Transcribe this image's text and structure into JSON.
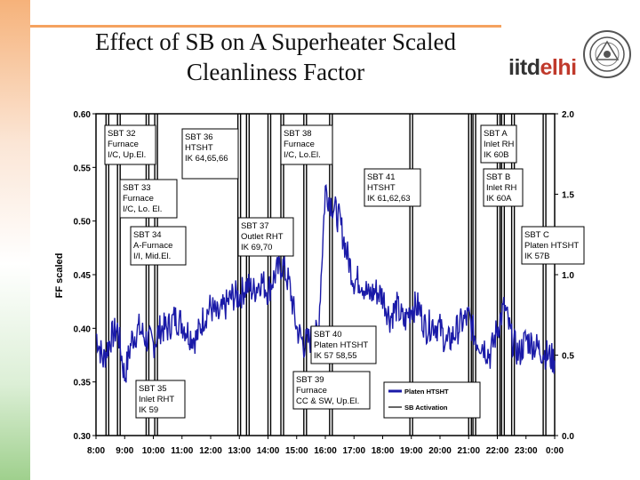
{
  "header": {
    "title_line1": "Effect of SB on A Superheater Scaled",
    "title_line2": "Cleanliness Factor",
    "logo_iitd": "iitd",
    "logo_delhi": "elhi"
  },
  "colors": {
    "series": "#1a1aa8",
    "activation": "#000000",
    "orange_band": "#f5a25f",
    "green_band": "#9fd08d"
  },
  "chart_data": {
    "type": "line",
    "title": "",
    "xlabel": "",
    "ylabel": "FF scaled",
    "x_ticks": [
      "8:00",
      "9:00",
      "10:00",
      "11:00",
      "12:00",
      "13:00",
      "14:00",
      "15:00",
      "16:00",
      "17:00",
      "18:00",
      "19:00",
      "20:00",
      "21:00",
      "22:00",
      "23:00",
      "0:00"
    ],
    "xlim": [
      8,
      24
    ],
    "ylim": [
      0.3,
      0.6
    ],
    "y_ticks": [
      "0.30",
      "0.35",
      "0.40",
      "0.45",
      "0.50",
      "0.55",
      "0.60"
    ],
    "y2lim": [
      0.0,
      2.0
    ],
    "y2_ticks": [
      "0.0",
      "0.5",
      "1.0",
      "1.5",
      "2.0"
    ],
    "legend": [
      "Platen HTSHT",
      "SB Activation"
    ],
    "legend_position": "bottom-right",
    "series": [
      {
        "name": "Platen HTSHT",
        "x": [
          8.0,
          8.25,
          8.5,
          8.75,
          9.0,
          9.25,
          9.5,
          9.75,
          10.0,
          10.25,
          10.5,
          10.75,
          11.0,
          11.25,
          11.5,
          11.75,
          12.0,
          12.25,
          12.5,
          12.75,
          13.0,
          13.25,
          13.5,
          13.75,
          14.0,
          14.25,
          14.5,
          14.75,
          15.0,
          15.25,
          15.5,
          15.75,
          16.0,
          16.25,
          16.5,
          16.75,
          17.0,
          17.25,
          17.5,
          17.75,
          18.0,
          18.25,
          18.5,
          18.75,
          19.0,
          19.25,
          19.5,
          19.75,
          20.0,
          20.25,
          20.5,
          20.75,
          21.0,
          21.25,
          21.5,
          21.75,
          22.0,
          22.25,
          22.5,
          22.75,
          23.0,
          23.25,
          23.5,
          23.75,
          24.0
        ],
        "values": [
          0.395,
          0.37,
          0.39,
          0.4,
          0.355,
          0.39,
          0.4,
          0.39,
          0.385,
          0.4,
          0.4,
          0.41,
          0.405,
          0.395,
          0.39,
          0.41,
          0.42,
          0.41,
          0.42,
          0.43,
          0.43,
          0.44,
          0.435,
          0.445,
          0.435,
          0.45,
          0.46,
          0.44,
          0.4,
          0.385,
          0.39,
          0.395,
          0.53,
          0.515,
          0.5,
          0.47,
          0.445,
          0.445,
          0.43,
          0.435,
          0.43,
          0.41,
          0.42,
          0.405,
          0.42,
          0.42,
          0.4,
          0.405,
          0.4,
          0.385,
          0.395,
          0.405,
          0.41,
          0.39,
          0.385,
          0.375,
          0.4,
          0.42,
          0.39,
          0.375,
          0.39,
          0.385,
          0.38,
          0.375,
          0.37
        ]
      }
    ],
    "sb_activations": [
      8.35,
      8.75,
      9.75,
      10.05,
      12.95,
      13.25,
      14.0,
      14.45,
      15.25,
      16.15,
      18.95,
      21.0,
      21.15,
      22.0,
      22.15,
      22.5,
      23.6
    ],
    "annotations": [
      {
        "lines": [
          "SBT 32",
          "Furnace",
          "I/C, Up.El."
        ]
      },
      {
        "lines": [
          "SBT 36",
          "HTSHT",
          "IK 64,65,66"
        ]
      },
      {
        "lines": [
          "SBT 38",
          "Furnace",
          "I/C, Lo.El."
        ]
      },
      {
        "lines": [
          "SBT A",
          "Inlet RH",
          "IK 60B"
        ]
      },
      {
        "lines": [
          "SBT 33",
          "Furnace",
          "I/C, Lo. El."
        ]
      },
      {
        "lines": [
          "SBT 41",
          "HTSHT",
          "IK 61,62,63"
        ]
      },
      {
        "lines": [
          "SBT B",
          "Inlet RH",
          "IK 60A"
        ]
      },
      {
        "lines": [
          "SBT 37",
          "Outlet RHT",
          "IK 69,70"
        ]
      },
      {
        "lines": [
          "SBT C",
          "Platen HTSHT",
          "IK 57B"
        ]
      },
      {
        "lines": [
          "SBT 34",
          "A-Furnace",
          "I/I, Mid.El."
        ]
      },
      {
        "lines": [
          "SBT 40",
          "Platen HTSHT",
          "IK 57 58,55"
        ]
      },
      {
        "lines": [
          "SBT 35",
          "Inlet RHT",
          "IK 59"
        ]
      },
      {
        "lines": [
          "SBT 39",
          "Furnace",
          "CC & SW, Up.El."
        ]
      }
    ]
  }
}
